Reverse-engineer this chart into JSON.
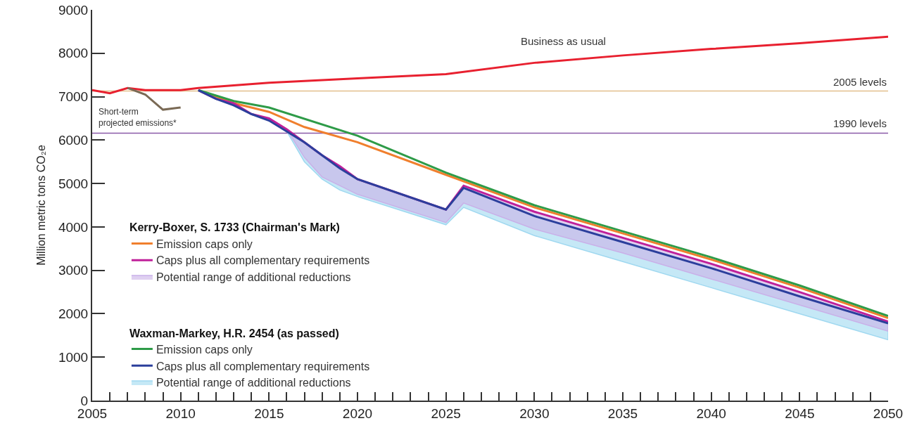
{
  "chart_data": {
    "type": "line",
    "ylabel": "Million metric tons CO₂e",
    "xlim": [
      2005,
      2050
    ],
    "ylim": [
      0,
      9000
    ],
    "xticks": [
      2005,
      {
        "value": 2006,
        "label": null
      },
      {
        "value": 2007,
        "label": null
      },
      {
        "value": 2008,
        "label": null
      },
      {
        "value": 2009,
        "label": null
      },
      2010,
      {
        "value": 2011,
        "label": null
      },
      {
        "value": 2012,
        "label": null
      },
      {
        "value": 2013,
        "label": null
      },
      {
        "value": 2014,
        "label": null
      },
      2015,
      {
        "value": 2016,
        "label": null
      },
      {
        "value": 2017,
        "label": null
      },
      {
        "value": 2018,
        "label": null
      },
      {
        "value": 2019,
        "label": null
      },
      2020,
      {
        "value": 2021,
        "label": null
      },
      {
        "value": 2022,
        "label": null
      },
      {
        "value": 2023,
        "label": null
      },
      {
        "value": 2024,
        "label": null
      },
      2025,
      {
        "value": 2026,
        "label": null
      },
      {
        "value": 2027,
        "label": null
      },
      {
        "value": 2028,
        "label": null
      },
      {
        "value": 2029,
        "label": null
      },
      2030,
      {
        "value": 2031,
        "label": null
      },
      {
        "value": 2032,
        "label": null
      },
      {
        "value": 2033,
        "label": null
      },
      {
        "value": 2034,
        "label": null
      },
      2035,
      {
        "value": 2036,
        "label": null
      },
      {
        "value": 2037,
        "label": null
      },
      {
        "value": 2038,
        "label": null
      },
      {
        "value": 2039,
        "label": null
      },
      2040,
      {
        "value": 2041,
        "label": null
      },
      {
        "value": 2042,
        "label": null
      },
      {
        "value": 2043,
        "label": null
      },
      {
        "value": 2044,
        "label": null
      },
      2045,
      {
        "value": 2046,
        "label": null
      },
      {
        "value": 2047,
        "label": null
      },
      {
        "value": 2048,
        "label": null
      },
      {
        "value": 2049,
        "label": null
      },
      2050
    ],
    "yticks": [
      0,
      1000,
      2000,
      3000,
      4000,
      5000,
      6000,
      7000,
      8000,
      9000
    ],
    "grid": false,
    "legend": "left",
    "line_style": "solid",
    "marker": "none",
    "annotations": [
      "Kerry-Boxer, S. 1733 (Chairman's Mark)",
      "Waxman-Markey, H.R. 2454 (as passed)",
      "Business as usual",
      "Short-term\nprojected emissions*"
    ],
    "ref_lines": [
      {
        "axis": "y",
        "value": 7130,
        "label": "2005 levels",
        "color": "#e2bf8c"
      },
      {
        "axis": "y",
        "value": 6160,
        "label": "1990 levels",
        "color": "#8a5aa8"
      }
    ],
    "series": [
      {
        "name": "Emission caps only",
        "color": "#f07f2d",
        "x": [
          2011,
          2013,
          2015,
          2017,
          2020,
          2025,
          2030,
          2035,
          2040,
          2045,
          2050
        ],
        "values": [
          7150,
          6850,
          6650,
          6300,
          5950,
          5200,
          4450,
          3850,
          3250,
          2600,
          1900
        ]
      },
      {
        "name": "Caps plus all complementary requirements",
        "color": "#c0209a",
        "x": [
          2011,
          2012,
          2013,
          2014,
          2015,
          2016,
          2017,
          2018,
          2019,
          2020,
          2025,
          2026,
          2030,
          2035,
          2040,
          2045,
          2050
        ],
        "values": [
          7150,
          6950,
          6850,
          6600,
          6500,
          6250,
          5950,
          5650,
          5400,
          5100,
          4400,
          4950,
          4350,
          3750,
          3150,
          2500,
          1820
        ]
      },
      {
        "type": "area",
        "name": "Potential range of additional reductions",
        "color": "#c9b0e8",
        "x": [
          2016,
          2017,
          2018,
          2019,
          2020,
          2025,
          2026,
          2030,
          2035,
          2040,
          2045,
          2050
        ],
        "values": [
          null,
          null,
          null,
          null,
          null,
          null,
          null,
          null,
          null,
          null,
          null,
          null
        ],
        "lower": [
          6250,
          5600,
          5150,
          4950,
          4750,
          4100,
          4550,
          3950,
          3400,
          2800,
          2200,
          1600
        ],
        "upper": [
          6250,
          5950,
          5650,
          5400,
          5100,
          4400,
          4950,
          4350,
          3750,
          3150,
          2500,
          1820
        ]
      },
      {
        "name": "Emission caps only",
        "color": "#2e9b48",
        "x": [
          2011,
          2013,
          2015,
          2020,
          2025,
          2030,
          2035,
          2040,
          2045,
          2050
        ],
        "values": [
          7150,
          6900,
          6750,
          6100,
          5250,
          4500,
          3900,
          3300,
          2650,
          1950
        ]
      },
      {
        "name": "Caps plus all complementary requirements",
        "color": "#2b3f9c",
        "x": [
          2011,
          2012,
          2013,
          2014,
          2015,
          2016,
          2017,
          2018,
          2019,
          2020,
          2025,
          2026,
          2030,
          2035,
          2040,
          2045,
          2050
        ],
        "values": [
          7150,
          6950,
          6800,
          6600,
          6450,
          6200,
          5950,
          5650,
          5350,
          5100,
          4400,
          4900,
          4250,
          3650,
          3050,
          2400,
          1780
        ]
      },
      {
        "type": "area",
        "name": "Potential range of additional reductions",
        "color": "#9fd8f0",
        "x": [
          2016,
          2017,
          2018,
          2019,
          2020,
          2025,
          2026,
          2030,
          2035,
          2040,
          2045,
          2050
        ],
        "values": [
          null,
          null,
          null,
          null,
          null,
          null,
          null,
          null,
          null,
          null,
          null,
          null
        ],
        "lower": [
          6200,
          5500,
          5100,
          4850,
          4700,
          4050,
          4450,
          3800,
          3200,
          2600,
          2000,
          1400
        ],
        "upper": [
          6200,
          5950,
          5650,
          5350,
          5100,
          4400,
          4900,
          4250,
          3650,
          3050,
          2400,
          1780
        ]
      },
      {
        "color": "#e8202f",
        "x": [
          2005,
          2006,
          2007,
          2008,
          2010,
          2011,
          2015,
          2020,
          2025,
          2030,
          2035,
          2040,
          2045,
          2050
        ],
        "values": [
          7150,
          7080,
          7200,
          7150,
          7150,
          7200,
          7320,
          7420,
          7520,
          7780,
          7950,
          8100,
          8230,
          8380
        ]
      },
      {
        "color": "#7a6a55",
        "x": [
          2007,
          2008,
          2009,
          2010
        ],
        "values": [
          7200,
          7050,
          6700,
          6750
        ]
      }
    ]
  }
}
